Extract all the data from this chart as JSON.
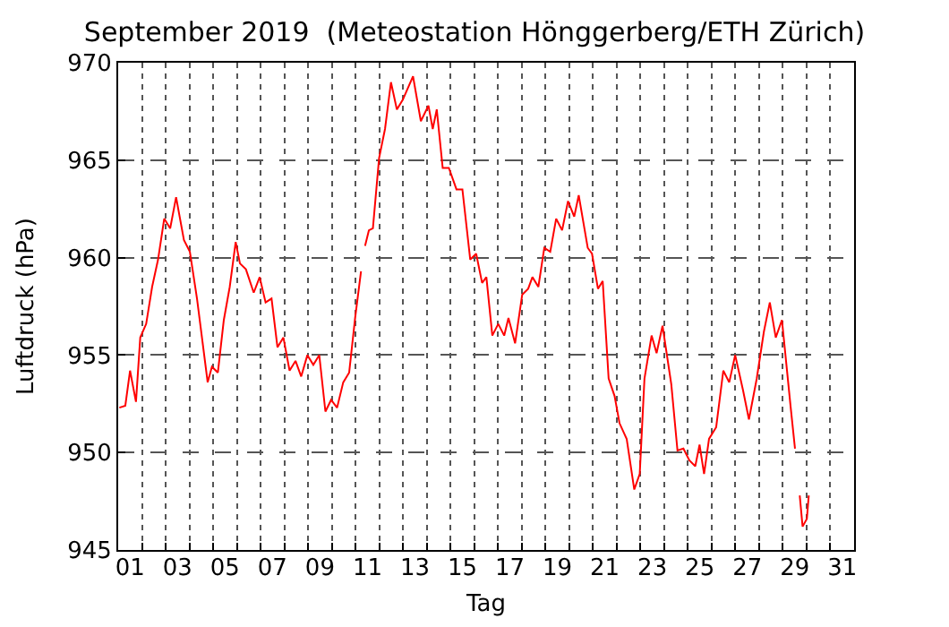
{
  "chart_data": {
    "type": "line",
    "title": "September 2019  (Meteostation Hönggerberg/ETH Zürich)",
    "xlabel": "Tag",
    "ylabel": "Luftdruck (hPa)",
    "series": [
      {
        "color": "#ff0000",
        "x": [
          0.05,
          0.3,
          0.5,
          0.75,
          0.93,
          1.18,
          1.43,
          1.68,
          1.94,
          2.19,
          2.44,
          2.77,
          3.02,
          3.32,
          3.77,
          3.95,
          4.2,
          4.45,
          4.7,
          4.95,
          5.13,
          5.38,
          5.71,
          5.96,
          6.21,
          6.46,
          6.71,
          6.96,
          7.22,
          7.47,
          7.71,
          7.97,
          8.22,
          8.47,
          8.73,
          8.97,
          9.22,
          9.48,
          9.73,
          9.98,
          10.23,
          10.3,
          10.4,
          10.56,
          10.73,
          10.99,
          11.24,
          11.49,
          11.74,
          11.99,
          12.24,
          12.42,
          12.75,
          13.07,
          13.25,
          13.42,
          13.67,
          13.93,
          14.25,
          14.5,
          14.83,
          15.08,
          15.33,
          15.51,
          15.76,
          16.01,
          16.26,
          16.44,
          16.72,
          17.02,
          17.27,
          17.45,
          17.7,
          17.95,
          18.2,
          18.45,
          18.7,
          18.95,
          19.21,
          19.4,
          19.78,
          19.96,
          20.21,
          20.41,
          20.66,
          20.91,
          21.12,
          21.42,
          21.74,
          21.97,
          22.17,
          22.47,
          22.68,
          22.93,
          23.3,
          23.56,
          23.81,
          24.06,
          24.31,
          24.49,
          24.68,
          24.89,
          25.19,
          25.49,
          25.74,
          25.99,
          26.32,
          26.57,
          26.9,
          27.2,
          27.45,
          27.7,
          27.96,
          28.33,
          28.51,
          28.6,
          28.71,
          28.83,
          29.01,
          29.09
        ],
        "values": [
          952.3,
          952.4,
          954.2,
          952.6,
          955.9,
          956.6,
          958.5,
          959.9,
          962.0,
          961.5,
          963.1,
          960.9,
          960.3,
          957.9,
          953.6,
          954.4,
          954.1,
          956.8,
          958.5,
          960.8,
          959.7,
          959.4,
          958.2,
          959.0,
          957.7,
          957.9,
          955.4,
          955.9,
          954.2,
          954.7,
          953.9,
          955.0,
          954.5,
          955.0,
          952.1,
          952.7,
          952.3,
          953.6,
          954.1,
          956.9,
          959.3,
          null,
          960.6,
          961.4,
          961.5,
          965.1,
          966.6,
          969.0,
          967.6,
          968.1,
          968.8,
          969.3,
          967.0,
          967.8,
          966.6,
          967.6,
          964.6,
          964.6,
          963.5,
          963.5,
          959.9,
          960.2,
          958.7,
          959.0,
          956.0,
          956.6,
          956.0,
          956.9,
          955.6,
          958.1,
          958.4,
          959.0,
          958.5,
          960.5,
          960.3,
          962.0,
          961.4,
          962.9,
          962.1,
          963.2,
          960.5,
          960.2,
          958.4,
          958.8,
          953.8,
          952.9,
          951.5,
          950.7,
          948.1,
          948.9,
          953.8,
          956.0,
          955.1,
          956.5,
          953.5,
          950.1,
          950.2,
          949.6,
          949.3,
          950.4,
          948.9,
          950.7,
          951.3,
          954.2,
          953.6,
          955.0,
          953.2,
          951.7,
          953.8,
          956.2,
          957.7,
          955.9,
          956.8,
          952.3,
          950.2,
          null,
          947.8,
          946.2,
          946.6,
          947.8
        ]
      }
    ],
    "xlim": [
      0,
      31
    ],
    "ylim": [
      945,
      970
    ],
    "xticks": [
      {
        "value": 0.5,
        "label": "01"
      },
      {
        "value": 2.5,
        "label": "03"
      },
      {
        "value": 4.5,
        "label": "05"
      },
      {
        "value": 6.5,
        "label": "07"
      },
      {
        "value": 8.5,
        "label": "09"
      },
      {
        "value": 10.5,
        "label": "11"
      },
      {
        "value": 12.5,
        "label": "13"
      },
      {
        "value": 14.5,
        "label": "15"
      },
      {
        "value": 16.5,
        "label": "17"
      },
      {
        "value": 18.5,
        "label": "19"
      },
      {
        "value": 20.5,
        "label": "21"
      },
      {
        "value": 22.5,
        "label": "23"
      },
      {
        "value": 24.5,
        "label": "25"
      },
      {
        "value": 26.5,
        "label": "27"
      },
      {
        "value": 28.5,
        "label": "29"
      },
      {
        "value": 30.5,
        "label": "31"
      },
      {
        "value": 1,
        "label": null
      },
      {
        "value": 2,
        "label": null
      },
      {
        "value": 3,
        "label": null
      },
      {
        "value": 4,
        "label": null
      },
      {
        "value": 5,
        "label": null
      },
      {
        "value": 6,
        "label": null
      },
      {
        "value": 7,
        "label": null
      },
      {
        "value": 8,
        "label": null
      },
      {
        "value": 9,
        "label": null
      },
      {
        "value": 10,
        "label": null
      },
      {
        "value": 11,
        "label": null
      },
      {
        "value": 12,
        "label": null
      },
      {
        "value": 13,
        "label": null
      },
      {
        "value": 14,
        "label": null
      },
      {
        "value": 15,
        "label": null
      },
      {
        "value": 16,
        "label": null
      },
      {
        "value": 17,
        "label": null
      },
      {
        "value": 18,
        "label": null
      },
      {
        "value": 19,
        "label": null
      },
      {
        "value": 20,
        "label": null
      },
      {
        "value": 21,
        "label": null
      },
      {
        "value": 22,
        "label": null
      },
      {
        "value": 23,
        "label": null
      },
      {
        "value": 24,
        "label": null
      },
      {
        "value": 25,
        "label": null
      },
      {
        "value": 26,
        "label": null
      },
      {
        "value": 27,
        "label": null
      },
      {
        "value": 28,
        "label": null
      },
      {
        "value": 29,
        "label": null
      },
      {
        "value": 30,
        "label": null
      }
    ],
    "yticks": [
      945,
      950,
      955,
      960,
      965,
      970
    ],
    "grid": true,
    "line_style": "solid"
  }
}
